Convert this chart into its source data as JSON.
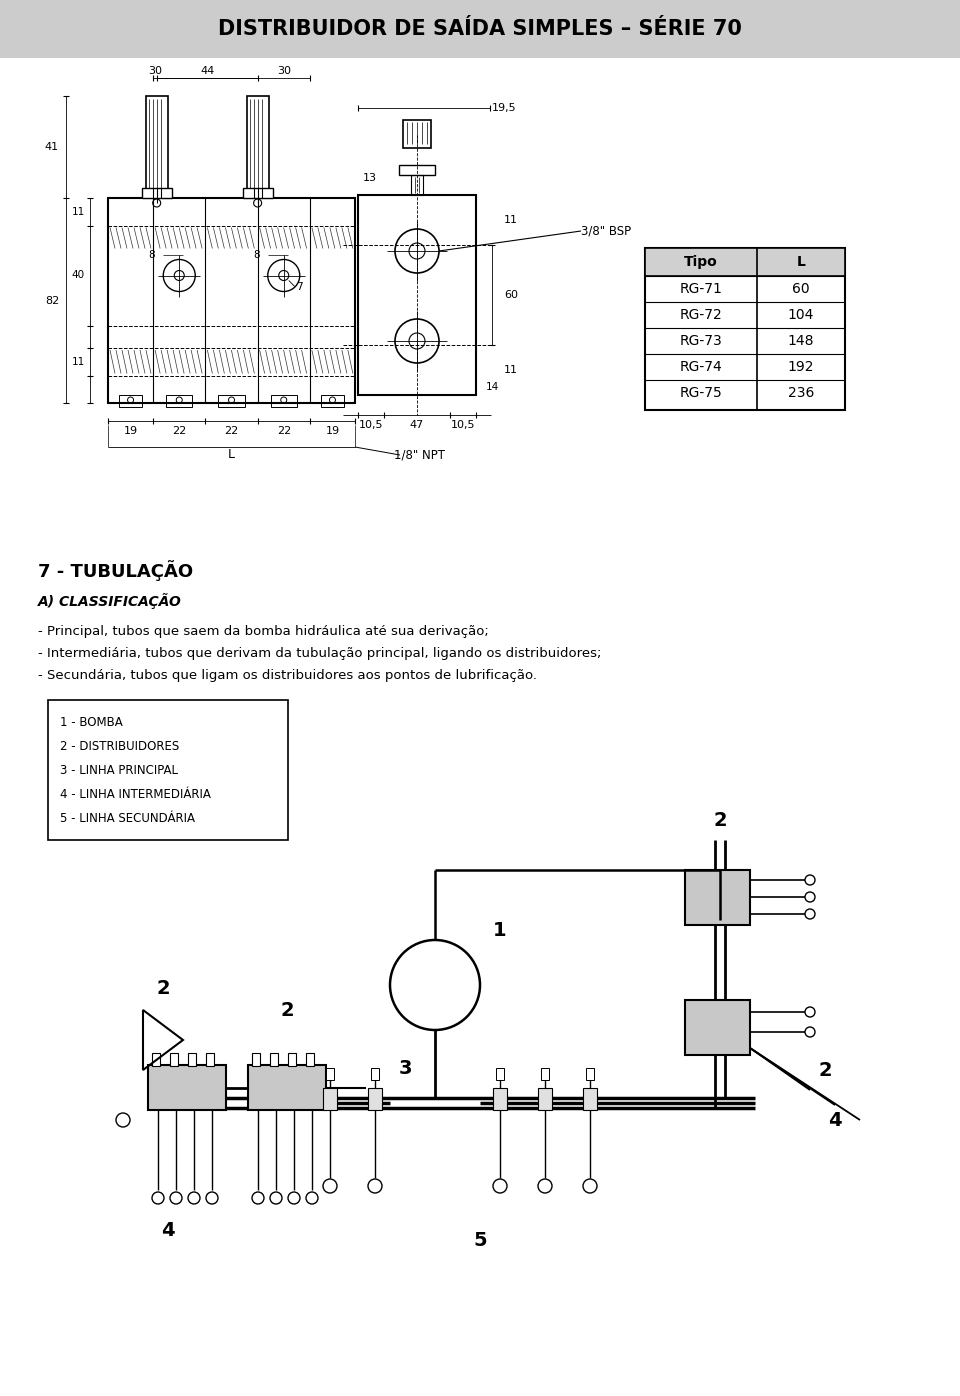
{
  "title": "DISTRIBUIDOR DE SAÍDA SIMPLES – SÉRIE 70",
  "table_rows": [
    [
      "RG-71",
      "60"
    ],
    [
      "RG-72",
      "104"
    ],
    [
      "RG-73",
      "148"
    ],
    [
      "RG-74",
      "192"
    ],
    [
      "RG-75",
      "236"
    ]
  ],
  "section_title": "7 - TUBULAÇÃO",
  "subsection_title": "A) CLASSIFICAÇÃO",
  "body_lines": [
    "- Principal, tubos que saem da bomba hidráulica até sua derivação;",
    "- Intermediária, tubos que derivam da tubulação principal, ligando os distribuidores;",
    "- Secundária, tubos que ligam os distribuidores aos pontos de lubrificação."
  ],
  "legend_items": [
    "1 - BOMBA",
    "2 - DISTRIBUIDORES",
    "3 - LINHA PRINCIPAL",
    "4 - LINHA INTERMEDIÁRIA",
    "5 - LINHA SECUNDÁRIA"
  ]
}
